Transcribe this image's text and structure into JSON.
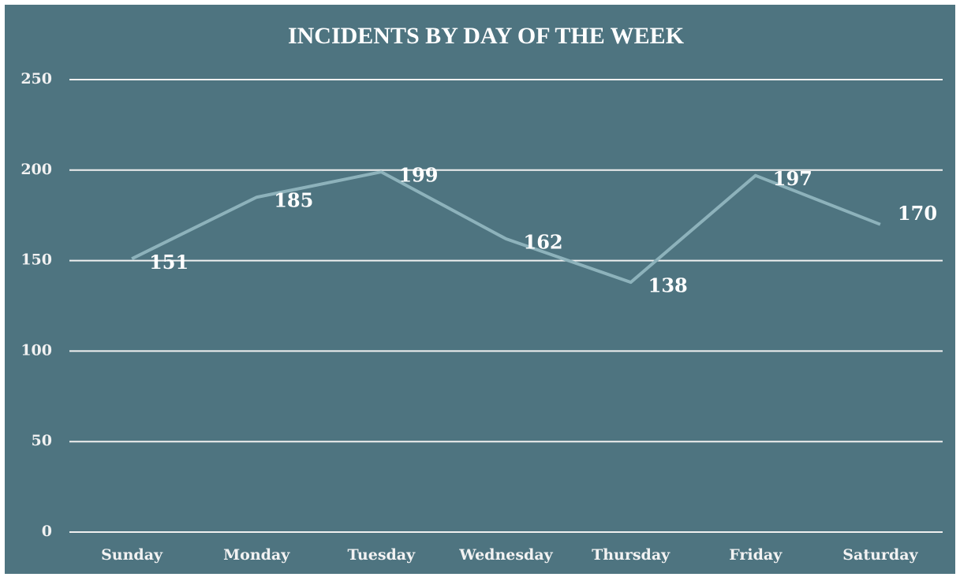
{
  "chart_data": {
    "type": "line",
    "title": "INCIDENTS BY DAY OF THE WEEK",
    "categories": [
      "Sunday",
      "Monday",
      "Tuesday",
      "Wednesday",
      "Thursday",
      "Friday",
      "Saturday"
    ],
    "values": [
      151,
      185,
      199,
      162,
      138,
      197,
      170
    ],
    "color": "#8db2bb",
    "ylim": [
      0,
      250
    ],
    "yticks": [
      0,
      50,
      100,
      150,
      200,
      250
    ],
    "grid": true
  }
}
